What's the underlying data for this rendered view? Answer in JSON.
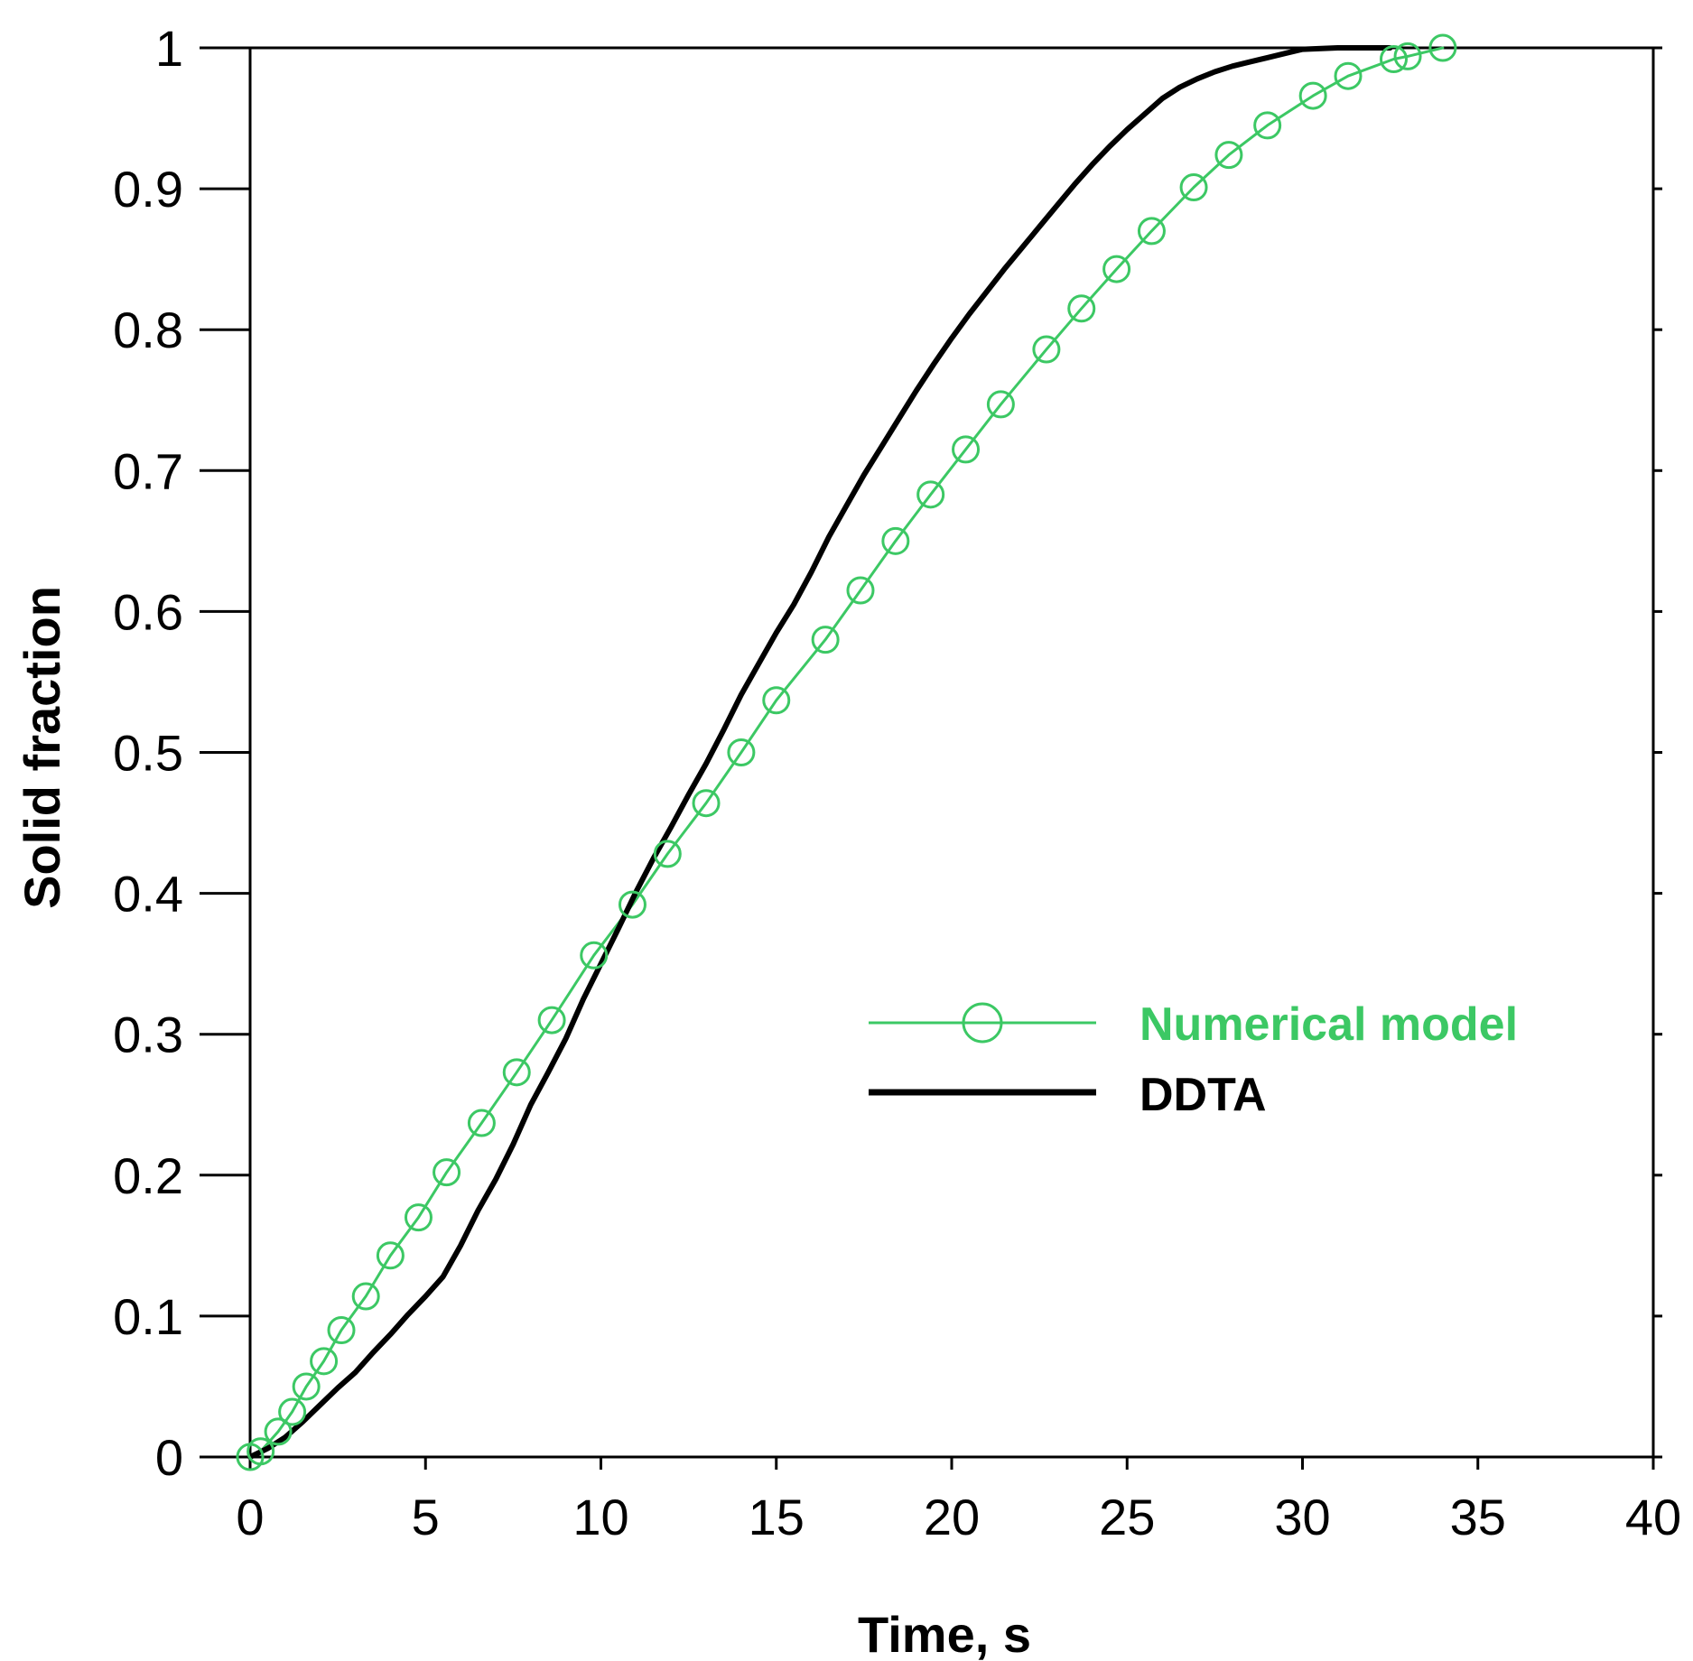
{
  "chart_data": {
    "type": "line",
    "title": "",
    "xlabel": "Time, s",
    "ylabel": "Solid fraction",
    "xlim": [
      0,
      40
    ],
    "ylim": [
      0,
      1
    ],
    "x_ticks": [
      0,
      5,
      10,
      15,
      20,
      25,
      30,
      35,
      40
    ],
    "y_ticks": [
      0,
      0.1,
      0.2,
      0.3,
      0.4,
      0.5,
      0.6,
      0.7,
      0.8,
      0.9,
      1
    ],
    "x_tick_labels": [
      "0",
      "5",
      "10",
      "15",
      "20",
      "25",
      "30",
      "35",
      "40"
    ],
    "y_tick_labels": [
      "0",
      "0.1",
      "0.2",
      "0.3",
      "0.4",
      "0.5",
      "0.6",
      "0.7",
      "0.8",
      "0.9",
      "1"
    ],
    "grid": false,
    "legend_position": "center-right",
    "series": [
      {
        "name": "Numerical model",
        "color": "#3cc864",
        "marker": "circle",
        "points": [
          [
            0,
            0
          ],
          [
            0.3,
            0.004
          ],
          [
            0.8,
            0.018
          ],
          [
            1.2,
            0.032
          ],
          [
            1.6,
            0.05
          ],
          [
            2.1,
            0.068
          ],
          [
            2.6,
            0.09
          ],
          [
            3.3,
            0.114
          ],
          [
            4.0,
            0.143
          ],
          [
            4.8,
            0.17
          ],
          [
            5.6,
            0.202
          ],
          [
            6.6,
            0.237
          ],
          [
            7.6,
            0.273
          ],
          [
            8.6,
            0.31
          ],
          [
            9.8,
            0.356
          ],
          [
            10.9,
            0.392
          ],
          [
            11.9,
            0.428
          ],
          [
            13.0,
            0.464
          ],
          [
            14.0,
            0.5
          ],
          [
            15.0,
            0.537
          ],
          [
            16.4,
            0.58
          ],
          [
            17.4,
            0.615
          ],
          [
            18.4,
            0.65
          ],
          [
            19.4,
            0.683
          ],
          [
            20.4,
            0.715
          ],
          [
            21.4,
            0.747
          ],
          [
            22.7,
            0.786
          ],
          [
            23.7,
            0.815
          ],
          [
            24.7,
            0.843
          ],
          [
            25.7,
            0.87
          ],
          [
            26.9,
            0.901
          ],
          [
            27.9,
            0.924
          ],
          [
            29.0,
            0.945
          ],
          [
            30.3,
            0.966
          ],
          [
            31.3,
            0.98
          ],
          [
            32.6,
            0.992
          ],
          [
            33.0,
            0.994
          ],
          [
            34.0,
            1.0
          ]
        ]
      },
      {
        "name": "DDTA",
        "color": "#000000",
        "marker": "none",
        "points": [
          [
            0,
            0
          ],
          [
            0.5,
            0.006
          ],
          [
            1.0,
            0.014
          ],
          [
            1.5,
            0.025
          ],
          [
            2.0,
            0.037
          ],
          [
            2.5,
            0.049
          ],
          [
            3.0,
            0.06
          ],
          [
            3.5,
            0.074
          ],
          [
            4.0,
            0.087
          ],
          [
            4.5,
            0.101
          ],
          [
            5.0,
            0.114
          ],
          [
            5.5,
            0.128
          ],
          [
            6.0,
            0.15
          ],
          [
            6.5,
            0.175
          ],
          [
            7.0,
            0.197
          ],
          [
            7.5,
            0.222
          ],
          [
            8.0,
            0.25
          ],
          [
            8.5,
            0.273
          ],
          [
            9.0,
            0.297
          ],
          [
            9.5,
            0.325
          ],
          [
            10.0,
            0.35
          ],
          [
            10.5,
            0.375
          ],
          [
            11.0,
            0.401
          ],
          [
            11.5,
            0.425
          ],
          [
            12.0,
            0.447
          ],
          [
            12.5,
            0.47
          ],
          [
            13.0,
            0.492
          ],
          [
            13.5,
            0.516
          ],
          [
            14.0,
            0.541
          ],
          [
            14.5,
            0.563
          ],
          [
            15.0,
            0.585
          ],
          [
            15.5,
            0.605
          ],
          [
            16.0,
            0.628
          ],
          [
            16.5,
            0.653
          ],
          [
            17.0,
            0.675
          ],
          [
            17.5,
            0.697
          ],
          [
            18.0,
            0.717
          ],
          [
            18.5,
            0.737
          ],
          [
            19.0,
            0.757
          ],
          [
            19.5,
            0.776
          ],
          [
            20.0,
            0.794
          ],
          [
            20.5,
            0.811
          ],
          [
            21.0,
            0.827
          ],
          [
            21.5,
            0.843
          ],
          [
            22.0,
            0.858
          ],
          [
            22.5,
            0.873
          ],
          [
            23.0,
            0.888
          ],
          [
            23.5,
            0.903
          ],
          [
            24.0,
            0.917
          ],
          [
            24.5,
            0.93
          ],
          [
            25.0,
            0.942
          ],
          [
            25.5,
            0.953
          ],
          [
            26.0,
            0.964
          ],
          [
            26.5,
            0.972
          ],
          [
            27.0,
            0.978
          ],
          [
            27.5,
            0.983
          ],
          [
            28.0,
            0.987
          ],
          [
            28.5,
            0.99
          ],
          [
            29.0,
            0.993
          ],
          [
            29.5,
            0.996
          ],
          [
            30.0,
            0.999
          ],
          [
            31.0,
            1.0
          ],
          [
            32.0,
            1.0
          ],
          [
            32.5,
            1.0
          ]
        ]
      }
    ]
  }
}
